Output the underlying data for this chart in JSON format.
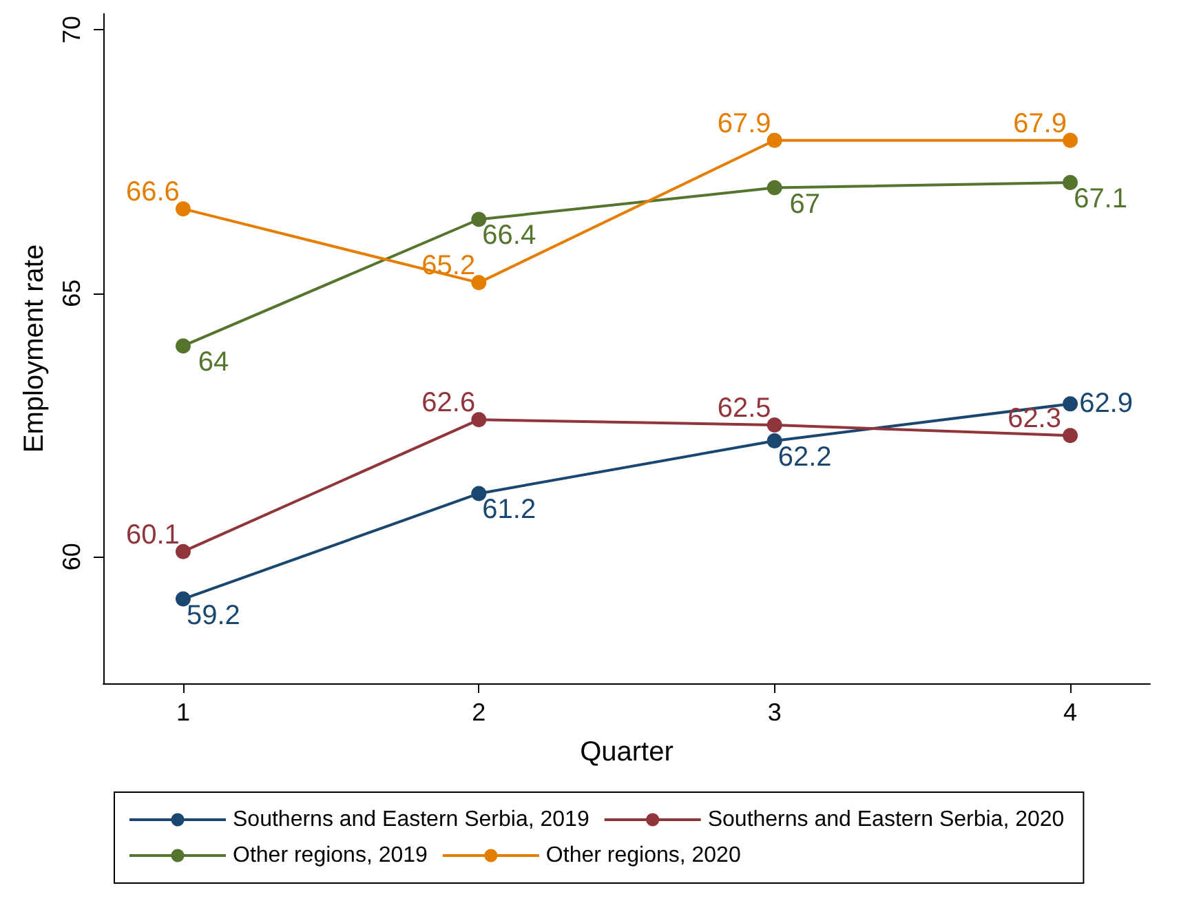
{
  "chart_data": {
    "type": "line",
    "xlabel": "Quarter",
    "ylabel": "Employment rate",
    "x": [
      1,
      2,
      3,
      4
    ],
    "xlim": [
      0.73,
      4.27
    ],
    "xticks": [
      1,
      2,
      3,
      4
    ],
    "ylim": [
      57.6,
      70.3
    ],
    "yticks": [
      60,
      65,
      70
    ],
    "series": [
      {
        "name": "Southerns and Eastern Serbia, 2019",
        "color": "#1a476f",
        "values": [
          59.2,
          61.2,
          62.2,
          62.9
        ]
      },
      {
        "name": "Southerns and Eastern Serbia, 2020",
        "color": "#90353b",
        "values": [
          60.1,
          62.6,
          62.5,
          62.3
        ]
      },
      {
        "name": "Other regions, 2019",
        "color": "#55752f",
        "values": [
          64,
          66.4,
          67,
          67.1
        ]
      },
      {
        "name": "Other regions, 2020",
        "color": "#e37e00",
        "values": [
          66.6,
          65.2,
          67.9,
          67.9
        ]
      }
    ],
    "data_labels": true,
    "grid": false,
    "legend": "bottom",
    "marker": "circle",
    "line_style": "solid"
  }
}
